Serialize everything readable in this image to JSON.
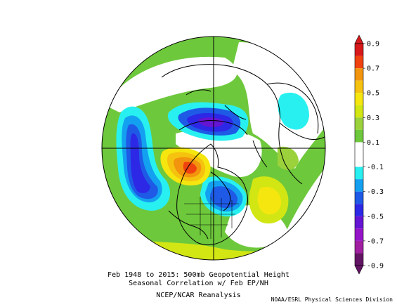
{
  "caption": {
    "line1": "Feb 1948 to 2015: 500mb Geopotential Height",
    "line2": "Seasonal Correlation w/ Feb EP/NH",
    "line3": "NCEP/NCAR Reanalysis"
  },
  "credit": "NOAA/ESRL Physical Sciences Division",
  "colorbar": {
    "ticks": [
      "0.9",
      "0.7",
      "0.5",
      "0.3",
      "0.1",
      "-0.1",
      "-0.3",
      "-0.5",
      "-0.7",
      "-0.9"
    ],
    "bands": [
      {
        "from": 0.8,
        "to": 0.9,
        "color": "#d7191c"
      },
      {
        "from": 0.7,
        "to": 0.8,
        "color": "#f0420f"
      },
      {
        "from": 0.6,
        "to": 0.7,
        "color": "#f2940d"
      },
      {
        "from": 0.5,
        "to": 0.6,
        "color": "#f5c20f"
      },
      {
        "from": 0.4,
        "to": 0.5,
        "color": "#f5e60f"
      },
      {
        "from": 0.3,
        "to": 0.4,
        "color": "#d2e614"
      },
      {
        "from": 0.2,
        "to": 0.3,
        "color": "#9bd23c"
      },
      {
        "from": 0.1,
        "to": 0.2,
        "color": "#6ec83c"
      },
      {
        "from": -0.1,
        "to": 0.1,
        "color": "#ffffff"
      },
      {
        "from": -0.2,
        "to": -0.1,
        "color": "#28f0f0"
      },
      {
        "from": -0.3,
        "to": -0.2,
        "color": "#14a0f0"
      },
      {
        "from": -0.4,
        "to": -0.3,
        "color": "#1e5ae6"
      },
      {
        "from": -0.5,
        "to": -0.4,
        "color": "#2d28e6"
      },
      {
        "from": -0.6,
        "to": -0.5,
        "color": "#6414d2"
      },
      {
        "from": -0.7,
        "to": -0.6,
        "color": "#9614c8"
      },
      {
        "from": -0.8,
        "to": -0.7,
        "color": "#a01ea0"
      },
      {
        "from": -0.9,
        "to": -0.8,
        "color": "#641464"
      }
    ]
  }
}
